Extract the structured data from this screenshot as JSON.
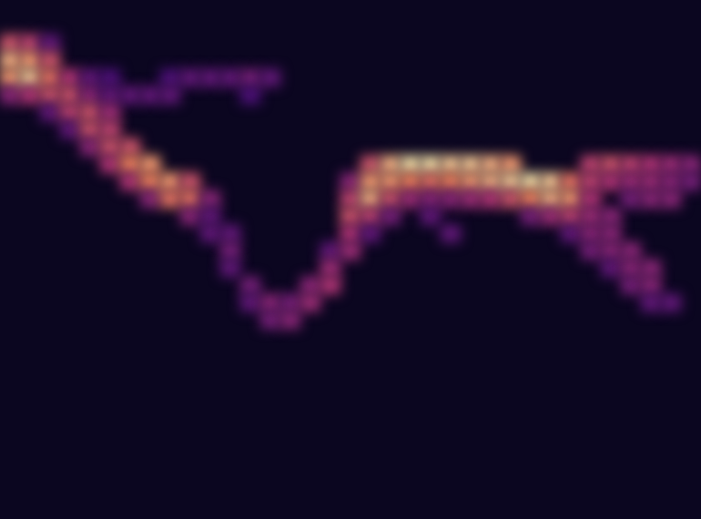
{
  "chart_data": {
    "type": "heatmap",
    "tick_labels": false,
    "xlim": [
      0,
      35
    ],
    "ylim": [
      0,
      30
    ],
    "value_range": [
      0,
      1
    ],
    "cells": [
      [
        0,
        2,
        0.6
      ],
      [
        0,
        3,
        0.85
      ],
      [
        0,
        4,
        0.8
      ],
      [
        0,
        5,
        0.4
      ],
      [
        1,
        2,
        0.55
      ],
      [
        1,
        3,
        0.8
      ],
      [
        1,
        4,
        0.9
      ],
      [
        1,
        5,
        0.5
      ],
      [
        2,
        2,
        0.3
      ],
      [
        2,
        3,
        0.6
      ],
      [
        2,
        4,
        0.7
      ],
      [
        2,
        5,
        0.6
      ],
      [
        2,
        6,
        0.3
      ],
      [
        3,
        4,
        0.5
      ],
      [
        3,
        5,
        0.6
      ],
      [
        3,
        6,
        0.55
      ],
      [
        3,
        7,
        0.3
      ],
      [
        4,
        4,
        0.3
      ],
      [
        4,
        5,
        0.4
      ],
      [
        4,
        6,
        0.6
      ],
      [
        4,
        7,
        0.6
      ],
      [
        4,
        8,
        0.4
      ],
      [
        5,
        4,
        0.25
      ],
      [
        5,
        5,
        0.3
      ],
      [
        5,
        6,
        0.45
      ],
      [
        5,
        7,
        0.55
      ],
      [
        5,
        8,
        0.6
      ],
      [
        5,
        9,
        0.5
      ],
      [
        6,
        5,
        0.3
      ],
      [
        6,
        8,
        0.6
      ],
      [
        6,
        9,
        0.75
      ],
      [
        6,
        10,
        0.5
      ],
      [
        7,
        5,
        0.3
      ],
      [
        7,
        9,
        0.8
      ],
      [
        7,
        10,
        0.75
      ],
      [
        7,
        11,
        0.4
      ],
      [
        8,
        4,
        0.25
      ],
      [
        8,
        5,
        0.3
      ],
      [
        8,
        10,
        0.8
      ],
      [
        8,
        11,
        0.7
      ],
      [
        9,
        4,
        0.3
      ],
      [
        9,
        10,
        0.6
      ],
      [
        9,
        11,
        0.7
      ],
      [
        9,
        12,
        0.4
      ],
      [
        10,
        4,
        0.3
      ],
      [
        10,
        11,
        0.4
      ],
      [
        10,
        12,
        0.3
      ],
      [
        10,
        13,
        0.3
      ],
      [
        11,
        4,
        0.3
      ],
      [
        11,
        13,
        0.3
      ],
      [
        11,
        14,
        0.35
      ],
      [
        11,
        15,
        0.3
      ],
      [
        12,
        4,
        0.35
      ],
      [
        12,
        5,
        0.25
      ],
      [
        12,
        16,
        0.35
      ],
      [
        12,
        17,
        0.3
      ],
      [
        13,
        4,
        0.3
      ],
      [
        13,
        17,
        0.4
      ],
      [
        13,
        18,
        0.35
      ],
      [
        14,
        17,
        0.35
      ],
      [
        14,
        18,
        0.4
      ],
      [
        15,
        16,
        0.4
      ],
      [
        15,
        17,
        0.45
      ],
      [
        16,
        14,
        0.3
      ],
      [
        16,
        15,
        0.45
      ],
      [
        16,
        16,
        0.5
      ],
      [
        17,
        10,
        0.4
      ],
      [
        17,
        11,
        0.55
      ],
      [
        17,
        12,
        0.6
      ],
      [
        17,
        13,
        0.5
      ],
      [
        17,
        14,
        0.45
      ],
      [
        18,
        9,
        0.6
      ],
      [
        18,
        10,
        0.8
      ],
      [
        18,
        11,
        0.85
      ],
      [
        18,
        12,
        0.55
      ],
      [
        18,
        13,
        0.3
      ],
      [
        19,
        9,
        0.85
      ],
      [
        19,
        10,
        0.8
      ],
      [
        19,
        11,
        0.6
      ],
      [
        19,
        12,
        0.35
      ],
      [
        20,
        9,
        0.95
      ],
      [
        20,
        10,
        0.75
      ],
      [
        20,
        11,
        0.45
      ],
      [
        21,
        9,
        0.95
      ],
      [
        21,
        10,
        0.7
      ],
      [
        21,
        11,
        0.4
      ],
      [
        21,
        12,
        0.3
      ],
      [
        22,
        9,
        0.9
      ],
      [
        22,
        10,
        0.75
      ],
      [
        22,
        11,
        0.4
      ],
      [
        22,
        13,
        0.3
      ],
      [
        23,
        9,
        0.9
      ],
      [
        23,
        10,
        0.8
      ],
      [
        23,
        11,
        0.45
      ],
      [
        24,
        9,
        0.85
      ],
      [
        24,
        10,
        0.85
      ],
      [
        24,
        11,
        0.5
      ],
      [
        25,
        9,
        0.8
      ],
      [
        25,
        10,
        0.9
      ],
      [
        25,
        11,
        0.6
      ],
      [
        26,
        10,
        0.95
      ],
      [
        26,
        11,
        0.75
      ],
      [
        26,
        12,
        0.35
      ],
      [
        27,
        10,
        0.9
      ],
      [
        27,
        11,
        0.85
      ],
      [
        27,
        12,
        0.45
      ],
      [
        28,
        10,
        0.7
      ],
      [
        28,
        11,
        0.8
      ],
      [
        28,
        12,
        0.55
      ],
      [
        28,
        13,
        0.3
      ],
      [
        29,
        9,
        0.55
      ],
      [
        29,
        10,
        0.55
      ],
      [
        29,
        11,
        0.5
      ],
      [
        29,
        12,
        0.45
      ],
      [
        29,
        13,
        0.4
      ],
      [
        29,
        14,
        0.35
      ],
      [
        30,
        9,
        0.6
      ],
      [
        30,
        10,
        0.5
      ],
      [
        30,
        12,
        0.4
      ],
      [
        30,
        13,
        0.4
      ],
      [
        30,
        14,
        0.4
      ],
      [
        30,
        15,
        0.3
      ],
      [
        31,
        9,
        0.55
      ],
      [
        31,
        10,
        0.45
      ],
      [
        31,
        11,
        0.35
      ],
      [
        31,
        14,
        0.4
      ],
      [
        31,
        15,
        0.4
      ],
      [
        31,
        16,
        0.35
      ],
      [
        32,
        9,
        0.5
      ],
      [
        32,
        10,
        0.45
      ],
      [
        32,
        11,
        0.4
      ],
      [
        32,
        15,
        0.4
      ],
      [
        32,
        16,
        0.4
      ],
      [
        32,
        17,
        0.3
      ],
      [
        33,
        9,
        0.45
      ],
      [
        33,
        10,
        0.4
      ],
      [
        33,
        11,
        0.4
      ],
      [
        33,
        17,
        0.3
      ],
      [
        34,
        9,
        0.4
      ],
      [
        34,
        10,
        0.35
      ]
    ]
  }
}
